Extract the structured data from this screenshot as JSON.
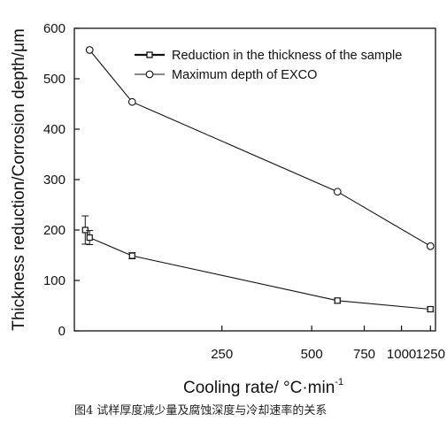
{
  "chart_data": {
    "type": "line",
    "title": "",
    "xlabel": "Cooling rate/ °C·min",
    "xlabel_superscript": "-1",
    "ylabel": "Thickness reduction/Corrosion depth/μm",
    "x_scale": "log",
    "xlim": [
      80,
      1300
    ],
    "ylim": [
      0,
      600
    ],
    "x_ticks": [
      250,
      500,
      750,
      1000,
      1250
    ],
    "y_ticks": [
      0,
      100,
      200,
      300,
      400,
      500,
      600
    ],
    "legend_position": "top-right",
    "grid": false,
    "series": [
      {
        "name": "Reduction in the thickness of the sample",
        "marker": "square",
        "color": "#111111",
        "points": [
          {
            "x": 87,
            "y": 200,
            "err": 28
          },
          {
            "x": 90,
            "y": 185,
            "err": 14
          },
          {
            "x": 125,
            "y": 149,
            "err": 6
          },
          {
            "x": 610,
            "y": 60,
            "err": 5
          },
          {
            "x": 1250,
            "y": 43,
            "err": 4
          }
        ]
      },
      {
        "name": "Maximum depth of EXCO",
        "marker": "circle",
        "color": "#111111",
        "points": [
          {
            "x": 90,
            "y": 557
          },
          {
            "x": 125,
            "y": 454
          },
          {
            "x": 610,
            "y": 276
          },
          {
            "x": 1250,
            "y": 168
          }
        ]
      }
    ]
  },
  "caption": "图4   试样厚度减少量及腐蚀深度与冷却速率的关系"
}
